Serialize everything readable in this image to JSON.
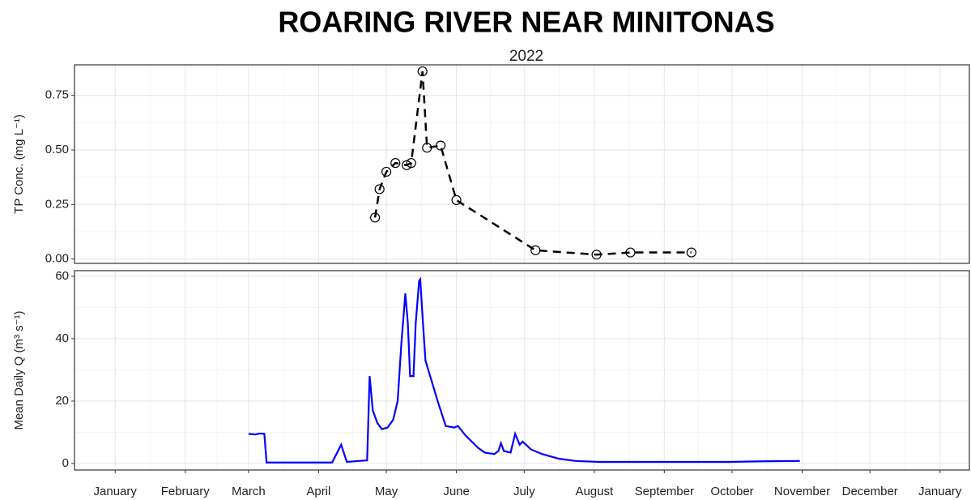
{
  "chart_data": [
    {
      "type": "line",
      "title": "ROARING RIVER NEAR MINITONAS",
      "subtitle": "2022",
      "y_label": "TP Conc. (mg L⁻¹)",
      "x": [
        115,
        117,
        120,
        124,
        129,
        131,
        136,
        138,
        144,
        151,
        186,
        213,
        228,
        255
      ],
      "series": [
        {
          "color": "#000000",
          "dash": "dashed",
          "marker": "circle",
          "values": [
            0.19,
            0.32,
            0.4,
            0.44,
            0.43,
            0.44,
            0.86,
            0.51,
            0.52,
            0.27,
            0.04,
            0.02,
            0.03,
            0.03
          ]
        }
      ],
      "xlim": [
        -18,
        378
      ],
      "xticks": [
        0,
        31,
        59,
        90,
        120,
        151,
        181,
        212,
        243,
        273,
        304,
        334,
        365
      ],
      "ylim": [
        -0.02,
        0.89
      ],
      "yticks": [
        {
          "value": 0,
          "label": "0.00"
        },
        {
          "value": 0.25,
          "label": "0.25"
        },
        {
          "value": 0.5,
          "label": "0.50"
        },
        {
          "value": 0.75,
          "label": "0.75"
        }
      ],
      "grid": true
    },
    {
      "type": "line",
      "y_label": "Mean Daily Q (m³ s⁻¹)",
      "x": [
        59,
        62,
        64,
        66,
        67,
        80,
        96,
        100,
        102.5,
        108,
        111.5,
        112.6,
        114,
        116,
        118,
        120.5,
        123,
        125,
        126.6,
        128.4,
        129.5,
        130.5,
        132,
        133,
        134.5,
        135,
        136.2,
        137.3,
        139.8,
        142.7,
        146.3,
        150,
        151.7,
        155,
        160.6,
        163.5,
        167.8,
        169.6,
        170.7,
        172,
        175,
        177,
        179,
        180.3,
        184,
        189,
        196.5,
        203.7,
        214,
        236,
        272,
        286,
        303
      ],
      "series": [
        {
          "color": "#0000ff",
          "dash": "solid",
          "values": [
            9.5,
            9.3,
            9.6,
            9.5,
            0.3,
            0.3,
            0.3,
            6,
            0.5,
            0.8,
            1,
            28,
            17,
            13,
            11,
            11.5,
            14,
            20,
            38,
            54.5,
            45,
            28,
            28,
            45,
            58.5,
            59,
            45,
            33,
            27,
            20,
            12,
            11.5,
            12,
            9,
            5,
            3.5,
            3,
            4,
            6.5,
            4,
            3.5,
            9.5,
            6,
            7,
            4.5,
            3,
            1.5,
            0.8,
            0.5,
            0.5,
            0.5,
            0.7,
            0.8
          ]
        }
      ],
      "xlim": [
        -18,
        378
      ],
      "xticks": [
        {
          "value": 0,
          "label": "January"
        },
        {
          "value": 31,
          "label": "February"
        },
        {
          "value": 59,
          "label": "March"
        },
        {
          "value": 90,
          "label": "April"
        },
        {
          "value": 120,
          "label": "May"
        },
        {
          "value": 151,
          "label": "June"
        },
        {
          "value": 181,
          "label": "July"
        },
        {
          "value": 212,
          "label": "August"
        },
        {
          "value": 243,
          "label": "September"
        },
        {
          "value": 273,
          "label": "October"
        },
        {
          "value": 304,
          "label": "November"
        },
        {
          "value": 334,
          "label": "December"
        },
        {
          "value": 365,
          "label": "January"
        }
      ],
      "ylim": [
        -2.1,
        61.8
      ],
      "yticks": [
        0,
        20,
        40,
        60
      ],
      "grid": true
    }
  ]
}
